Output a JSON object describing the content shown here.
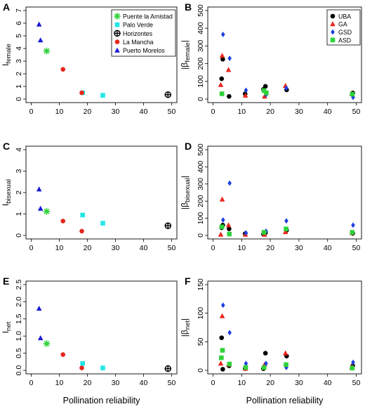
{
  "colors": {
    "green": "#2fd23a",
    "cyan": "#22e6e6",
    "black": "#000000",
    "red": "#e8261c",
    "blue": "#1a1ad6",
    "gsd_blue": "#1f3fe0"
  },
  "chart_data": [
    {
      "type": "scatter",
      "panel_label": "A",
      "xlabel": "",
      "ylabel": "I",
      "ylabel_sub": "female",
      "xlim": [
        0,
        50
      ],
      "ylim": [
        0,
        7
      ],
      "xticks": [
        "0",
        "10",
        "20",
        "30",
        "40",
        "50"
      ],
      "yticks": [
        "0",
        "1",
        "2",
        "3",
        "4",
        "5",
        "6",
        "7"
      ],
      "legend_position": "top-right",
      "series": [
        {
          "name": "Puente la Amistad",
          "color": "green",
          "marker": "asterisk",
          "points": [
            {
              "x": 5.5,
              "y": 3.8
            }
          ]
        },
        {
          "name": "Palo Verde",
          "color": "cyan",
          "marker": "square",
          "points": [
            {
              "x": 18.3,
              "y": 0.5
            },
            {
              "x": 25.5,
              "y": 0.3
            }
          ]
        },
        {
          "name": "Horizontes",
          "color": "black",
          "marker": "circle-plus",
          "points": [
            {
              "x": 48.7,
              "y": 0.35
            }
          ]
        },
        {
          "name": "La Mancha",
          "color": "red",
          "marker": "circle",
          "points": [
            {
              "x": 11.3,
              "y": 2.35
            },
            {
              "x": 18,
              "y": 0.5
            }
          ]
        },
        {
          "name": "Puerto Morelos",
          "color": "blue",
          "marker": "triangle",
          "points": [
            {
              "x": 2.8,
              "y": 5.9
            },
            {
              "x": 3.3,
              "y": 4.65
            }
          ]
        }
      ]
    },
    {
      "type": "scatter",
      "panel_label": "B",
      "xlabel": "",
      "ylabel": "|β",
      "ylabel_sub": "female",
      "ylabel_end": "|",
      "xlim": [
        0,
        50
      ],
      "ylim": [
        0,
        500
      ],
      "xticks": [
        "0",
        "10",
        "20",
        "30",
        "40",
        "50"
      ],
      "yticks": [
        "0",
        "100",
        "200",
        "300",
        "400",
        "500"
      ],
      "legend_position": "top-right",
      "series": [
        {
          "name": "UBA",
          "color": "black",
          "marker": "circle",
          "points": [
            {
              "x": 3,
              "y": 115
            },
            {
              "x": 3.4,
              "y": 225
            },
            {
              "x": 5.6,
              "y": 15
            },
            {
              "x": 11.2,
              "y": 30
            },
            {
              "x": 17.6,
              "y": 55
            },
            {
              "x": 18.3,
              "y": 72
            },
            {
              "x": 25.7,
              "y": 52
            },
            {
              "x": 48.8,
              "y": 35
            }
          ]
        },
        {
          "name": "GA",
          "color": "red",
          "marker": "triangle",
          "points": [
            {
              "x": 2.7,
              "y": 80
            },
            {
              "x": 3.2,
              "y": 245
            },
            {
              "x": 5.4,
              "y": 165
            },
            {
              "x": 11.3,
              "y": 20
            },
            {
              "x": 18,
              "y": 15
            },
            {
              "x": 25.3,
              "y": 75
            },
            {
              "x": 48.5,
              "y": 30
            }
          ]
        },
        {
          "name": "GSD",
          "color": "gsd_blue",
          "marker": "diamond",
          "points": [
            {
              "x": 3.5,
              "y": 365
            },
            {
              "x": 5.8,
              "y": 230
            },
            {
              "x": 11.5,
              "y": 50
            },
            {
              "x": 18.5,
              "y": 25
            },
            {
              "x": 25.6,
              "y": 62
            },
            {
              "x": 48.9,
              "y": 10
            }
          ]
        },
        {
          "name": "ASD",
          "color": "green",
          "marker": "square",
          "points": [
            {
              "x": 3.1,
              "y": 30
            },
            {
              "x": 17.8,
              "y": 48
            },
            {
              "x": 18.6,
              "y": 35
            },
            {
              "x": 48.6,
              "y": 28
            }
          ]
        }
      ]
    },
    {
      "type": "scatter",
      "panel_label": "C",
      "xlabel": "",
      "ylabel": "I",
      "ylabel_sub": "bisexual",
      "xlim": [
        0,
        50
      ],
      "ylim": [
        0,
        4
      ],
      "xticks": [
        "0",
        "10",
        "20",
        "30",
        "40",
        "50"
      ],
      "yticks": [
        "0",
        "1",
        "2",
        "3",
        "4"
      ],
      "series": [
        {
          "name": "Puente la Amistad",
          "color": "green",
          "marker": "asterisk",
          "points": [
            {
              "x": 5.5,
              "y": 1.12
            }
          ]
        },
        {
          "name": "Palo Verde",
          "color": "cyan",
          "marker": "square",
          "points": [
            {
              "x": 18.3,
              "y": 0.95
            },
            {
              "x": 25.5,
              "y": 0.57
            }
          ]
        },
        {
          "name": "Horizontes",
          "color": "black",
          "marker": "circle-plus",
          "points": [
            {
              "x": 48.7,
              "y": 0.45
            }
          ]
        },
        {
          "name": "La Mancha",
          "color": "red",
          "marker": "circle",
          "points": [
            {
              "x": 11.3,
              "y": 0.67
            },
            {
              "x": 18,
              "y": 0.2
            }
          ]
        },
        {
          "name": "Puerto Morelos",
          "color": "blue",
          "marker": "triangle",
          "points": [
            {
              "x": 2.8,
              "y": 2.15
            },
            {
              "x": 3.3,
              "y": 1.25
            }
          ]
        }
      ]
    },
    {
      "type": "scatter",
      "panel_label": "D",
      "xlabel": "",
      "ylabel": "|β",
      "ylabel_sub": "bisexual",
      "ylabel_end": "|",
      "xlim": [
        0,
        50
      ],
      "ylim": [
        0,
        500
      ],
      "xticks": [
        "0",
        "10",
        "20",
        "30",
        "40",
        "50"
      ],
      "yticks": [
        "0",
        "100",
        "200",
        "300",
        "400",
        "500"
      ],
      "series": [
        {
          "name": "UBA",
          "color": "black",
          "marker": "circle",
          "points": [
            {
              "x": 3,
              "y": 45
            },
            {
              "x": 3.4,
              "y": 60
            },
            {
              "x": 5.6,
              "y": 38
            },
            {
              "x": 11.2,
              "y": 10
            },
            {
              "x": 17.6,
              "y": 8
            },
            {
              "x": 18.3,
              "y": 15
            },
            {
              "x": 25.7,
              "y": 30
            },
            {
              "x": 48.8,
              "y": 12
            }
          ]
        },
        {
          "name": "GA",
          "color": "red",
          "marker": "triangle",
          "points": [
            {
              "x": 2.7,
              "y": 5
            },
            {
              "x": 3.2,
              "y": 210
            },
            {
              "x": 5.4,
              "y": 60
            },
            {
              "x": 11.3,
              "y": 5
            },
            {
              "x": 18,
              "y": 5
            },
            {
              "x": 25.3,
              "y": 20
            },
            {
              "x": 48.5,
              "y": 15
            }
          ]
        },
        {
          "name": "GSD",
          "color": "gsd_blue",
          "marker": "diamond",
          "points": [
            {
              "x": 3.5,
              "y": 90
            },
            {
              "x": 5.8,
              "y": 305
            },
            {
              "x": 11.5,
              "y": 15
            },
            {
              "x": 18.5,
              "y": 25
            },
            {
              "x": 25.6,
              "y": 85
            },
            {
              "x": 48.9,
              "y": 60
            }
          ]
        },
        {
          "name": "ASD",
          "color": "green",
          "marker": "square",
          "points": [
            {
              "x": 3.1,
              "y": 50
            },
            {
              "x": 5.7,
              "y": 8
            },
            {
              "x": 17.8,
              "y": 18
            },
            {
              "x": 25.5,
              "y": 38
            },
            {
              "x": 48.6,
              "y": 18
            }
          ]
        }
      ]
    },
    {
      "type": "scatter",
      "panel_label": "E",
      "xlabel": "Pollination reliability",
      "ylabel": "I",
      "ylabel_sub": "net",
      "xlim": [
        0,
        50
      ],
      "ylim": [
        0,
        2.5
      ],
      "xticks": [
        "0",
        "10",
        "20",
        "30",
        "40",
        "50"
      ],
      "yticks": [
        "0.0",
        "0.5",
        "1.0",
        "1.5",
        "2.0",
        "2.5"
      ],
      "series": [
        {
          "name": "Puente la Amistad",
          "color": "green",
          "marker": "asterisk",
          "points": [
            {
              "x": 5.5,
              "y": 0.78
            }
          ]
        },
        {
          "name": "Palo Verde",
          "color": "cyan",
          "marker": "square",
          "points": [
            {
              "x": 18.3,
              "y": 0.2
            },
            {
              "x": 25.5,
              "y": 0.07
            }
          ]
        },
        {
          "name": "Horizontes",
          "color": "black",
          "marker": "circle-plus",
          "points": [
            {
              "x": 48.7,
              "y": 0.05
            }
          ]
        },
        {
          "name": "La Mancha",
          "color": "red",
          "marker": "circle",
          "points": [
            {
              "x": 11.3,
              "y": 0.46
            },
            {
              "x": 18,
              "y": 0.07
            }
          ]
        },
        {
          "name": "Puerto Morelos",
          "color": "blue",
          "marker": "triangle",
          "points": [
            {
              "x": 2.8,
              "y": 1.8
            },
            {
              "x": 3.3,
              "y": 0.94
            }
          ]
        }
      ]
    },
    {
      "type": "scatter",
      "panel_label": "F",
      "xlabel": "Pollination reliability",
      "ylabel": "|β",
      "ylabel_sub": "net",
      "ylabel_end": "|",
      "xlim": [
        0,
        50
      ],
      "ylim": [
        0,
        150
      ],
      "xticks": [
        "0",
        "10",
        "20",
        "30",
        "40",
        "50"
      ],
      "yticks": [
        "0",
        "50",
        "100",
        "150"
      ],
      "series": [
        {
          "name": "UBA",
          "color": "black",
          "marker": "circle",
          "points": [
            {
              "x": 3,
              "y": 57
            },
            {
              "x": 3.4,
              "y": 2
            },
            {
              "x": 5.6,
              "y": 8
            },
            {
              "x": 11.2,
              "y": 3
            },
            {
              "x": 17.6,
              "y": 3
            },
            {
              "x": 18.3,
              "y": 30
            },
            {
              "x": 25.7,
              "y": 25
            },
            {
              "x": 48.8,
              "y": 8
            }
          ]
        },
        {
          "name": "GA",
          "color": "red",
          "marker": "triangle",
          "points": [
            {
              "x": 2.7,
              "y": 12
            },
            {
              "x": 3.2,
              "y": 95
            },
            {
              "x": 5.4,
              "y": 10
            },
            {
              "x": 11.3,
              "y": 3
            },
            {
              "x": 18,
              "y": 10
            },
            {
              "x": 25.3,
              "y": 30
            },
            {
              "x": 48.5,
              "y": 6
            }
          ]
        },
        {
          "name": "GSD",
          "color": "gsd_blue",
          "marker": "diamond",
          "points": [
            {
              "x": 3.5,
              "y": 114
            },
            {
              "x": 5.8,
              "y": 66
            },
            {
              "x": 11.5,
              "y": 12
            },
            {
              "x": 18.5,
              "y": 12
            },
            {
              "x": 25.6,
              "y": 5
            },
            {
              "x": 48.9,
              "y": 14
            }
          ]
        },
        {
          "name": "ASD",
          "color": "green",
          "marker": "square",
          "points": [
            {
              "x": 2.9,
              "y": 22
            },
            {
              "x": 3.3,
              "y": 35
            },
            {
              "x": 5.7,
              "y": 11
            },
            {
              "x": 11.4,
              "y": 5
            },
            {
              "x": 17.8,
              "y": 5
            },
            {
              "x": 25.5,
              "y": 10
            },
            {
              "x": 48.6,
              "y": 4
            }
          ]
        }
      ]
    }
  ]
}
